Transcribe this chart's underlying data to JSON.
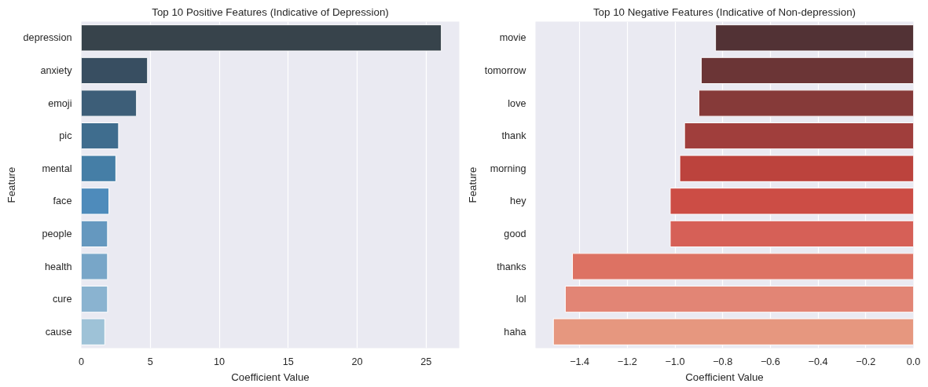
{
  "chart_data": [
    {
      "type": "bar",
      "orientation": "horizontal",
      "title": "Top 10 Positive Features (Indicative of Depression)",
      "xlabel": "Coefficient Value",
      "ylabel": "Feature",
      "categories": [
        "depression",
        "anxiety",
        "emoji",
        "pic",
        "mental",
        "face",
        "people",
        "health",
        "cure",
        "cause"
      ],
      "values": [
        26.1,
        4.8,
        4.0,
        2.7,
        2.5,
        2.0,
        1.9,
        1.9,
        1.9,
        1.7
      ],
      "colors": [
        "#37434b",
        "#384e61",
        "#3d5e78",
        "#3f6d8e",
        "#457ea6",
        "#4e8bbb",
        "#6598bf",
        "#78a6c8",
        "#8ab3d0",
        "#9ec2d7"
      ],
      "xlim": [
        0,
        27.4
      ],
      "xticks": [
        0,
        5,
        10,
        15,
        20,
        25
      ],
      "grid": "x"
    },
    {
      "type": "bar",
      "orientation": "horizontal",
      "title": "Top 10 Negative Features (Indicative of Non-depression)",
      "xlabel": "Coefficient Value",
      "ylabel": "Feature",
      "categories": [
        "movie",
        "tomorrow",
        "love",
        "thank",
        "morning",
        "hey",
        "good",
        "thanks",
        "lol",
        "haha"
      ],
      "values": [
        -0.83,
        -0.89,
        -0.9,
        -0.96,
        -0.98,
        -1.02,
        -1.02,
        -1.43,
        -1.46,
        -1.51
      ],
      "colors": [
        "#523235",
        "#6b3536",
        "#863a39",
        "#a03e3c",
        "#bc433d",
        "#cc4d45",
        "#d66057",
        "#dd7263",
        "#e28575",
        "#e6977f"
      ],
      "xlim": [
        -1.585,
        0
      ],
      "xticks": [
        {
          "value": -1.4,
          "label": "−1.4"
        },
        {
          "value": -1.2,
          "label": "−1.2"
        },
        {
          "value": -1.0,
          "label": "−1.0"
        },
        {
          "value": -0.8,
          "label": "−0.8"
        },
        {
          "value": -0.6,
          "label": "−0.6"
        },
        {
          "value": -0.4,
          "label": "−0.4"
        },
        {
          "value": -0.2,
          "label": "−0.2"
        },
        {
          "value": 0,
          "label": "0.0"
        }
      ],
      "grid": "x"
    }
  ]
}
